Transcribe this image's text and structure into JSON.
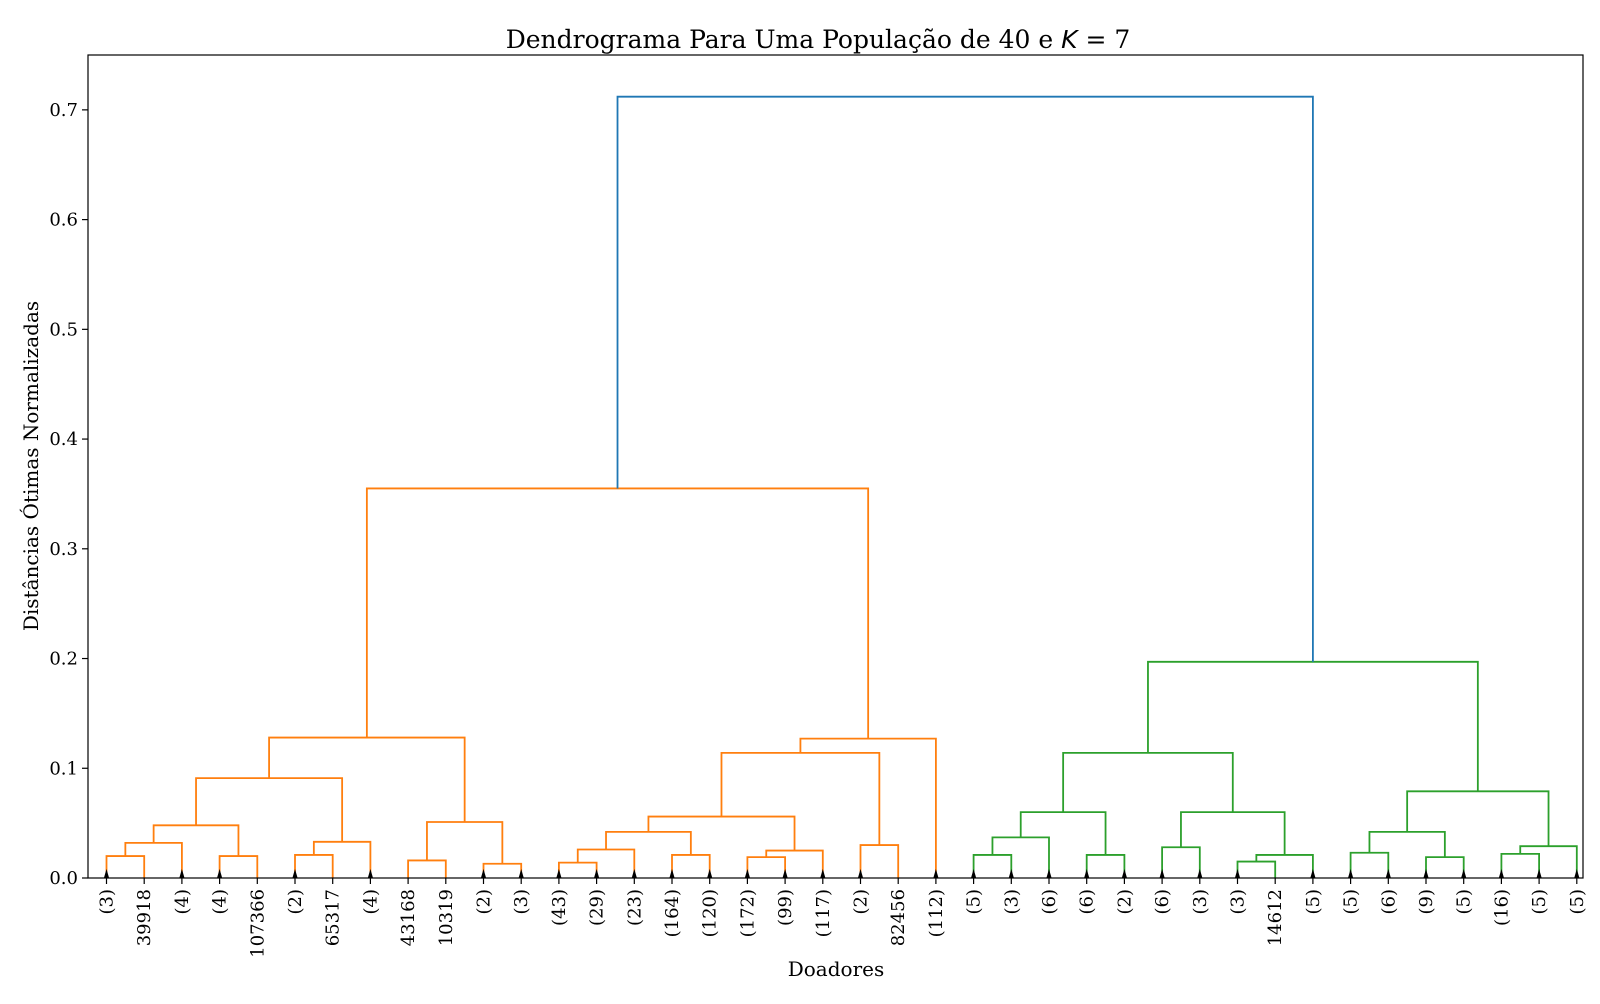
{
  "chart_data": {
    "type": "dendrogram",
    "title": "Dendrograma Para Uma População de 40 e K = 7",
    "title_parts": {
      "prefix": "Dendrograma Para Uma População de 40 e ",
      "k_symbol": "K",
      "suffix": " = 7"
    },
    "xlabel": "Doadores",
    "ylabel": "Distâncias Ótimas Normalizadas",
    "ylim": [
      0,
      0.75
    ],
    "y_ticks": [
      "0.0",
      "0.1",
      "0.2",
      "0.3",
      "0.4",
      "0.5",
      "0.6",
      "0.7"
    ],
    "colors": {
      "root": "#1f77b4",
      "cluster1": "#ff7f0e",
      "cluster2": "#2ca02c",
      "axis": "#000000"
    },
    "leaves": [
      {
        "label": "(3)",
        "truncated": true
      },
      {
        "label": "39918",
        "truncated": false
      },
      {
        "label": "(4)",
        "truncated": true
      },
      {
        "label": "(4)",
        "truncated": true
      },
      {
        "label": "107366",
        "truncated": false
      },
      {
        "label": "(2)",
        "truncated": true
      },
      {
        "label": "65317",
        "truncated": false
      },
      {
        "label": "(4)",
        "truncated": true
      },
      {
        "label": "43168",
        "truncated": false
      },
      {
        "label": "10319",
        "truncated": false
      },
      {
        "label": "(2)",
        "truncated": true
      },
      {
        "label": "(3)",
        "truncated": true
      },
      {
        "label": "(43)",
        "truncated": true
      },
      {
        "label": "(29)",
        "truncated": true
      },
      {
        "label": "(23)",
        "truncated": true
      },
      {
        "label": "(164)",
        "truncated": true
      },
      {
        "label": "(120)",
        "truncated": true
      },
      {
        "label": "(172)",
        "truncated": true
      },
      {
        "label": "(99)",
        "truncated": true
      },
      {
        "label": "(117)",
        "truncated": true
      },
      {
        "label": "(2)",
        "truncated": true
      },
      {
        "label": "82456",
        "truncated": false
      },
      {
        "label": "(112)",
        "truncated": true
      },
      {
        "label": "(5)",
        "truncated": true
      },
      {
        "label": "(3)",
        "truncated": true
      },
      {
        "label": "(6)",
        "truncated": true
      },
      {
        "label": "(6)",
        "truncated": true
      },
      {
        "label": "(2)",
        "truncated": true
      },
      {
        "label": "(6)",
        "truncated": true
      },
      {
        "label": "(3)",
        "truncated": true
      },
      {
        "label": "(3)",
        "truncated": true
      },
      {
        "label": "14612",
        "truncated": false
      },
      {
        "label": "(5)",
        "truncated": true
      },
      {
        "label": "(5)",
        "truncated": true
      },
      {
        "label": "(6)",
        "truncated": true
      },
      {
        "label": "(9)",
        "truncated": true
      },
      {
        "label": "(5)",
        "truncated": true
      },
      {
        "label": "(16)",
        "truncated": true
      },
      {
        "label": "(5)",
        "truncated": true
      },
      {
        "label": "(5)",
        "truncated": true
      }
    ],
    "merges": [
      {
        "id": "n40",
        "a": 0,
        "b": 1,
        "height": 0.02,
        "color": "cluster1"
      },
      {
        "id": "n41",
        "a": "n40",
        "b": 2,
        "height": 0.032,
        "color": "cluster1"
      },
      {
        "id": "n42",
        "a": 3,
        "b": 4,
        "height": 0.02,
        "color": "cluster1"
      },
      {
        "id": "n43",
        "a": "n41",
        "b": "n42",
        "height": 0.048,
        "color": "cluster1"
      },
      {
        "id": "n44",
        "a": 5,
        "b": 6,
        "height": 0.021,
        "color": "cluster1"
      },
      {
        "id": "n45",
        "a": "n44",
        "b": 7,
        "height": 0.033,
        "color": "cluster1"
      },
      {
        "id": "n46",
        "a": "n43",
        "b": "n45",
        "height": 0.091,
        "color": "cluster1"
      },
      {
        "id": "n47",
        "a": 8,
        "b": 9,
        "height": 0.016,
        "color": "cluster1"
      },
      {
        "id": "n48",
        "a": 10,
        "b": 11,
        "height": 0.013,
        "color": "cluster1"
      },
      {
        "id": "n49",
        "a": "n47",
        "b": "n48",
        "height": 0.051,
        "color": "cluster1"
      },
      {
        "id": "n50",
        "a": "n46",
        "b": "n49",
        "height": 0.128,
        "color": "cluster1"
      },
      {
        "id": "n51",
        "a": 12,
        "b": 13,
        "height": 0.014,
        "color": "cluster1"
      },
      {
        "id": "n52",
        "a": "n51",
        "b": 14,
        "height": 0.026,
        "color": "cluster1"
      },
      {
        "id": "n53",
        "a": 15,
        "b": 16,
        "height": 0.021,
        "color": "cluster1"
      },
      {
        "id": "n54",
        "a": "n52",
        "b": "n53",
        "height": 0.042,
        "color": "cluster1"
      },
      {
        "id": "n55",
        "a": 17,
        "b": 18,
        "height": 0.019,
        "color": "cluster1"
      },
      {
        "id": "n56",
        "a": "n55",
        "b": 19,
        "height": 0.025,
        "color": "cluster1"
      },
      {
        "id": "n57",
        "a": "n54",
        "b": "n56",
        "height": 0.056,
        "color": "cluster1"
      },
      {
        "id": "n58",
        "a": 20,
        "b": 21,
        "height": 0.03,
        "color": "cluster1"
      },
      {
        "id": "n59",
        "a": "n57",
        "b": "n58",
        "height": 0.114,
        "color": "cluster1"
      },
      {
        "id": "n60",
        "a": "n59",
        "b": 22,
        "height": 0.127,
        "color": "cluster1"
      },
      {
        "id": "n61",
        "a": "n50",
        "b": "n60",
        "height": 0.355,
        "color": "cluster1"
      },
      {
        "id": "n62",
        "a": 23,
        "b": 24,
        "height": 0.021,
        "color": "cluster2"
      },
      {
        "id": "n63",
        "a": "n62",
        "b": 25,
        "height": 0.037,
        "color": "cluster2"
      },
      {
        "id": "n64",
        "a": 26,
        "b": 27,
        "height": 0.021,
        "color": "cluster2"
      },
      {
        "id": "n65",
        "a": "n63",
        "b": "n64",
        "height": 0.06,
        "color": "cluster2"
      },
      {
        "id": "n66",
        "a": 28,
        "b": 29,
        "height": 0.028,
        "color": "cluster2"
      },
      {
        "id": "n67",
        "a": 30,
        "b": 31,
        "height": 0.015,
        "color": "cluster2"
      },
      {
        "id": "n68",
        "a": "n67",
        "b": 32,
        "height": 0.021,
        "color": "cluster2"
      },
      {
        "id": "n69",
        "a": "n66",
        "b": "n68",
        "height": 0.06,
        "color": "cluster2"
      },
      {
        "id": "n70",
        "a": "n65",
        "b": "n69",
        "height": 0.114,
        "color": "cluster2"
      },
      {
        "id": "n71",
        "a": 33,
        "b": 34,
        "height": 0.023,
        "color": "cluster2"
      },
      {
        "id": "n72",
        "a": 35,
        "b": 36,
        "height": 0.019,
        "color": "cluster2"
      },
      {
        "id": "n73",
        "a": "n71",
        "b": "n72",
        "height": 0.042,
        "color": "cluster2"
      },
      {
        "id": "n74",
        "a": 37,
        "b": 38,
        "height": 0.022,
        "color": "cluster2"
      },
      {
        "id": "n75",
        "a": "n74",
        "b": 39,
        "height": 0.029,
        "color": "cluster2"
      },
      {
        "id": "n76",
        "a": "n73",
        "b": "n75",
        "height": 0.079,
        "color": "cluster2"
      },
      {
        "id": "n77",
        "a": "n70",
        "b": "n76",
        "height": 0.197,
        "color": "cluster2"
      },
      {
        "id": "n78",
        "a": "n61",
        "b": "n77",
        "height": 0.712,
        "color": "root"
      }
    ]
  }
}
